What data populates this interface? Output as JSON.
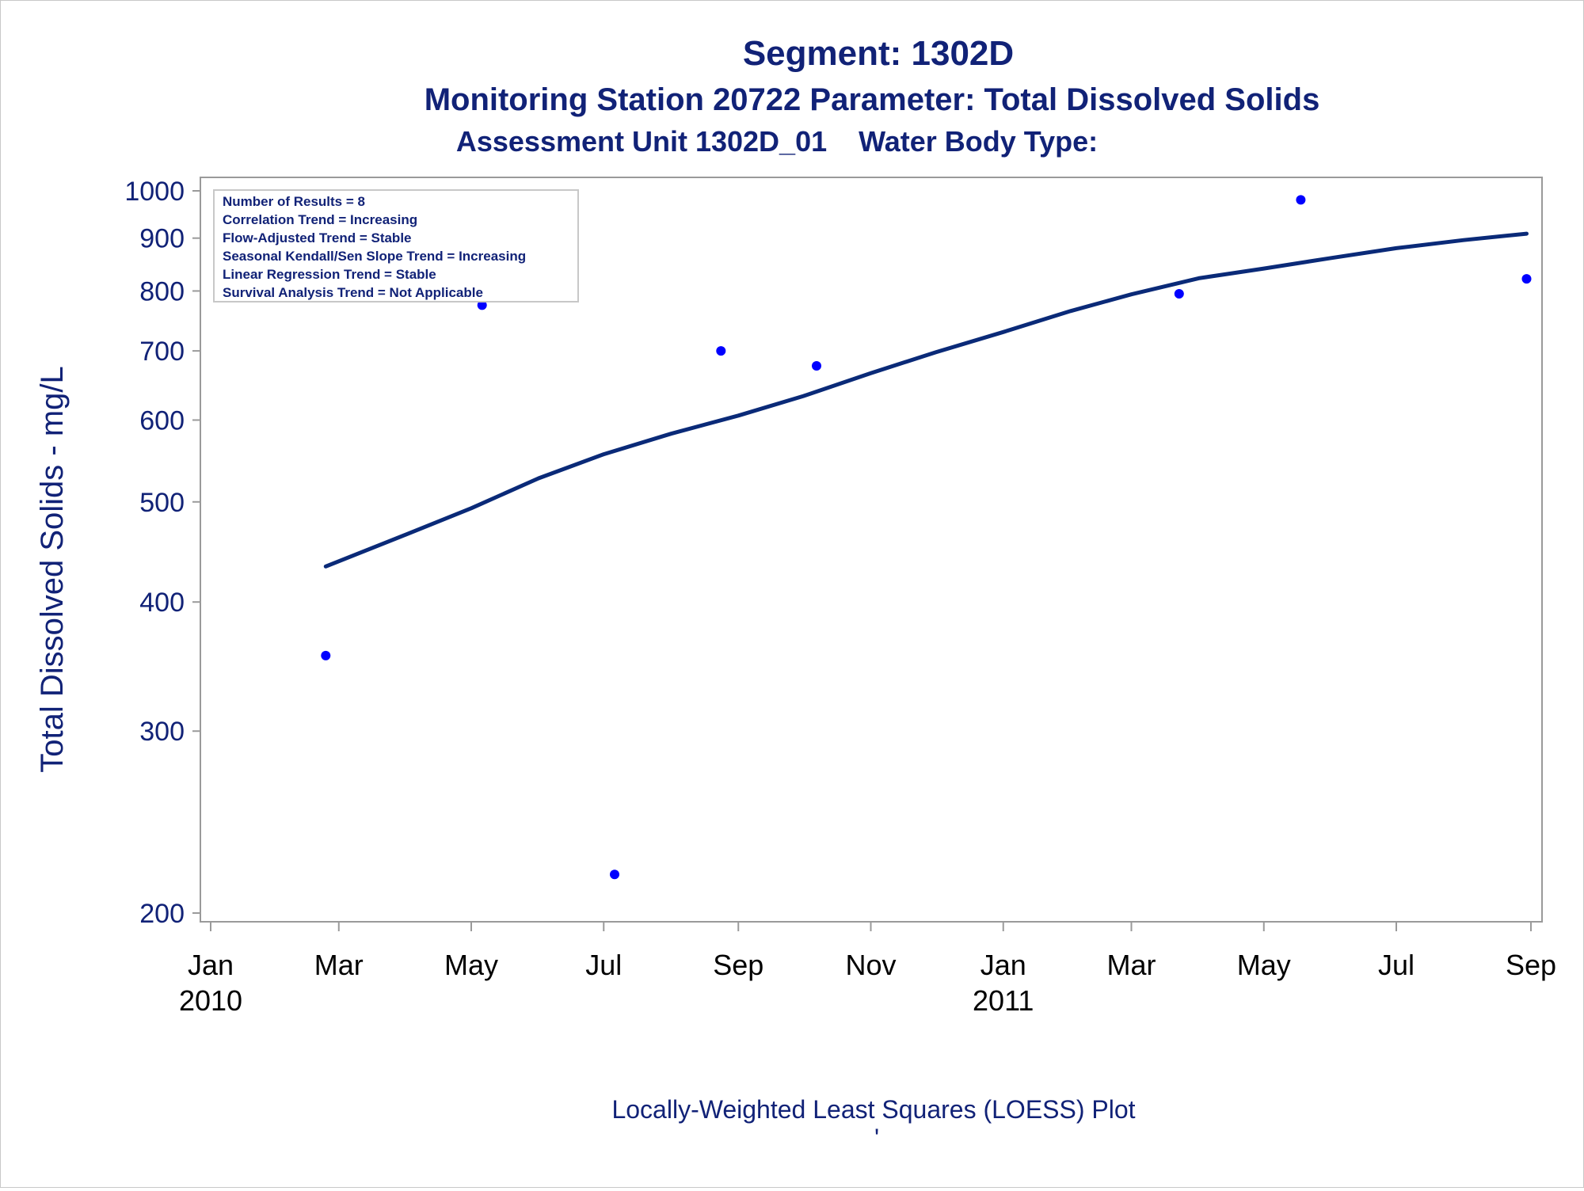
{
  "titles": {
    "line1": "Segment: 1302D",
    "line2": "Monitoring Station 20722 Parameter: Total Dissolved Solids",
    "line3": "Assessment Unit 1302D_01    Water Body Type:"
  },
  "footnote": "Locally-Weighted Least Squares (LOESS) Plot",
  "footnote_mark": "'",
  "stats_box": [
    "Number of Results = 8",
    "Correlation Trend = Increasing",
    "Flow-Adjusted Trend = Stable",
    "Seasonal Kendall/Sen Slope Trend = Increasing",
    "Linear Regression Trend = Stable",
    "Survival Analysis Trend = Not Applicable"
  ],
  "colors": {
    "text": "#112277",
    "loess_line": "#0a2a78",
    "points": "#0000ff",
    "frame": "#9a9a9a"
  },
  "chart_data": {
    "type": "scatter",
    "ylabel": "Total Dissolved Solids - mg/L",
    "xlabel": "",
    "y_scale": "log",
    "ylim": [
      200,
      1000
    ],
    "xlim": [
      "2010-01-01",
      "2011-09-01"
    ],
    "yticks": [
      200,
      300,
      400,
      500,
      600,
      700,
      800,
      900,
      1000
    ],
    "xticks": [
      {
        "date": "2010-01-01",
        "label": "Jan",
        "year": "2010"
      },
      {
        "date": "2010-03-01",
        "label": "Mar",
        "year": ""
      },
      {
        "date": "2010-05-01",
        "label": "May",
        "year": ""
      },
      {
        "date": "2010-07-01",
        "label": "Jul",
        "year": ""
      },
      {
        "date": "2010-09-01",
        "label": "Sep",
        "year": ""
      },
      {
        "date": "2010-11-01",
        "label": "Nov",
        "year": ""
      },
      {
        "date": "2011-01-01",
        "label": "Jan",
        "year": "2011"
      },
      {
        "date": "2011-03-01",
        "label": "Mar",
        "year": ""
      },
      {
        "date": "2011-05-01",
        "label": "May",
        "year": ""
      },
      {
        "date": "2011-07-01",
        "label": "Jul",
        "year": ""
      },
      {
        "date": "2011-09-01",
        "label": "Sep",
        "year": ""
      }
    ],
    "grid": false,
    "points": [
      {
        "x": "2010-02-23",
        "y": 355
      },
      {
        "x": "2010-05-06",
        "y": 775
      },
      {
        "x": "2010-07-06",
        "y": 218
      },
      {
        "x": "2010-08-24",
        "y": 700
      },
      {
        "x": "2010-10-07",
        "y": 677
      },
      {
        "x": "2011-03-23",
        "y": 795
      },
      {
        "x": "2011-05-18",
        "y": 980
      },
      {
        "x": "2011-08-30",
        "y": 822
      }
    ],
    "loess_line": [
      {
        "x": "2010-02-23",
        "y": 433
      },
      {
        "x": "2010-04-01",
        "y": 465
      },
      {
        "x": "2010-05-01",
        "y": 493
      },
      {
        "x": "2010-06-01",
        "y": 527
      },
      {
        "x": "2010-07-01",
        "y": 556
      },
      {
        "x": "2010-08-01",
        "y": 582
      },
      {
        "x": "2010-09-01",
        "y": 606
      },
      {
        "x": "2010-10-01",
        "y": 633
      },
      {
        "x": "2010-11-01",
        "y": 666
      },
      {
        "x": "2010-12-01",
        "y": 698
      },
      {
        "x": "2011-01-01",
        "y": 730
      },
      {
        "x": "2011-02-01",
        "y": 765
      },
      {
        "x": "2011-03-01",
        "y": 794
      },
      {
        "x": "2011-04-01",
        "y": 823
      },
      {
        "x": "2011-05-01",
        "y": 841
      },
      {
        "x": "2011-06-01",
        "y": 861
      },
      {
        "x": "2011-07-01",
        "y": 880
      },
      {
        "x": "2011-08-01",
        "y": 896
      },
      {
        "x": "2011-08-30",
        "y": 909
      }
    ]
  }
}
